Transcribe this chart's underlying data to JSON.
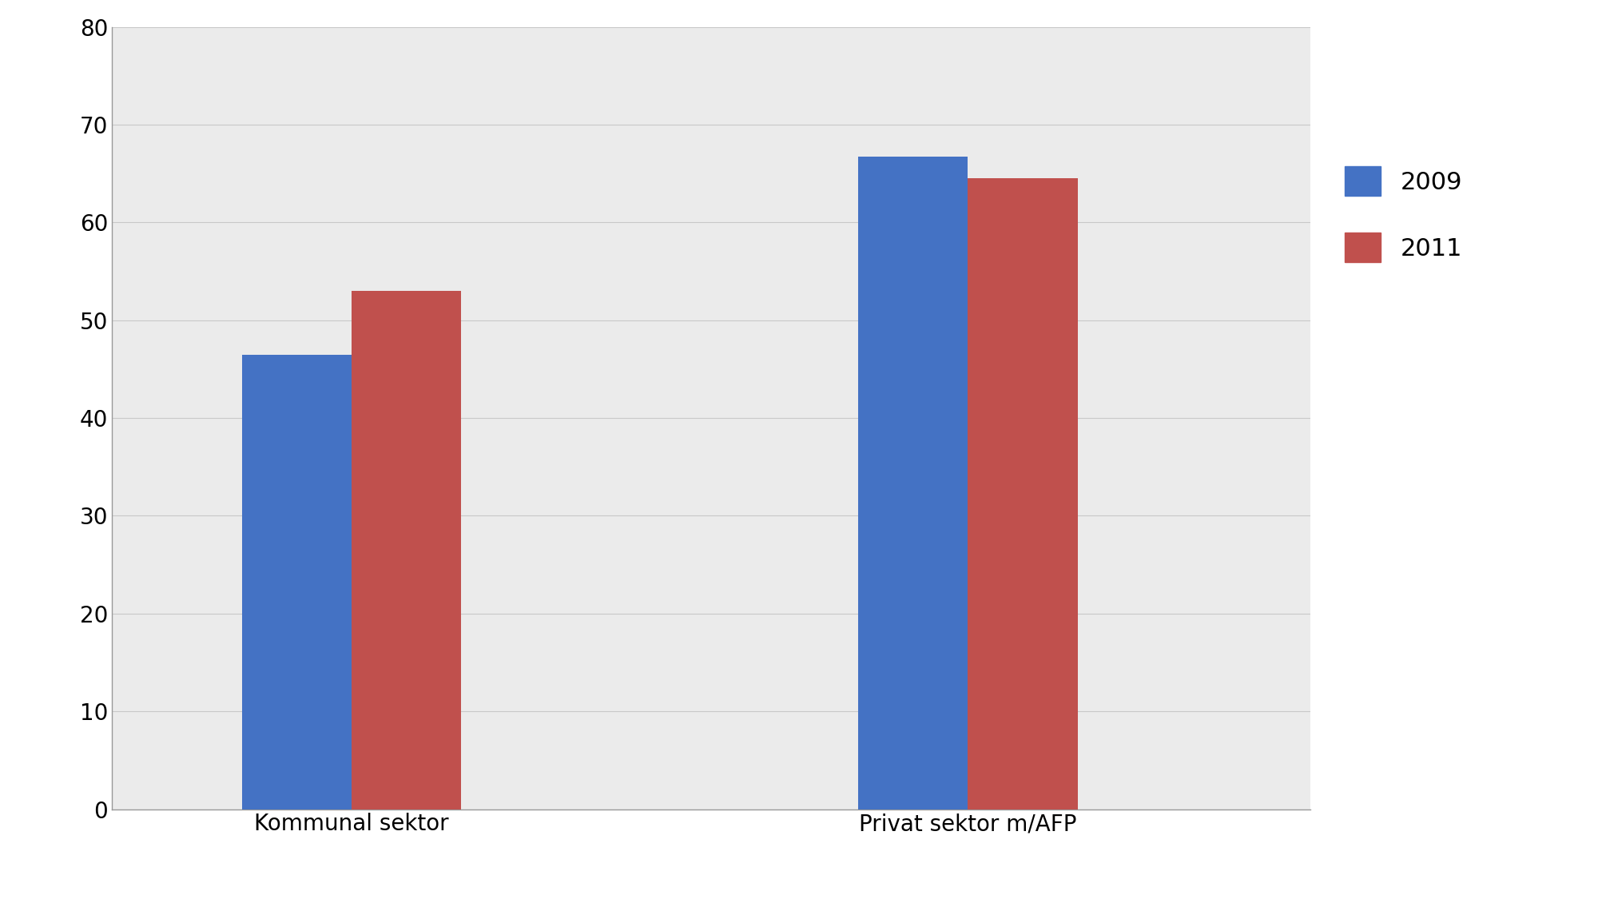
{
  "categories": [
    "Kommunal sektor",
    "Privat sektor m/AFP"
  ],
  "series": [
    {
      "label": "2009",
      "values": [
        46.5,
        66.7
      ],
      "color": "#4472C4"
    },
    {
      "label": "2011",
      "values": [
        53.0,
        64.5
      ],
      "color": "#C0504D"
    }
  ],
  "ylim": [
    0,
    80
  ],
  "yticks": [
    0,
    10,
    20,
    30,
    40,
    50,
    60,
    70,
    80
  ],
  "plot_background_color": "#EBEBEB",
  "figure_background_color": "#FFFFFF",
  "bar_width": 0.32,
  "group_centers": [
    1.0,
    2.8
  ],
  "xlim": [
    0.3,
    3.8
  ],
  "legend_fontsize": 22,
  "tick_fontsize": 20,
  "xtick_fontsize": 20,
  "grid_color": "#C8C8C8",
  "spine_color": "#999999"
}
